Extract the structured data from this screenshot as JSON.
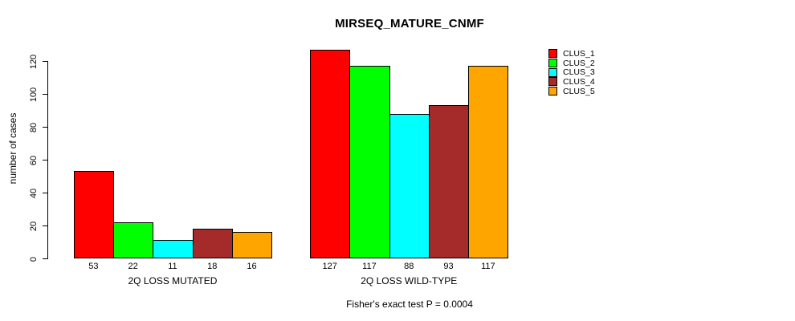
{
  "title": "MIRSEQ_MATURE_CNMF",
  "footer": {
    "text": "Fisher's exact test P = 0.0004"
  },
  "chart_data": {
    "type": "bar",
    "title": "MIRSEQ_MATURE_CNMF",
    "xlabel": "",
    "ylabel": "number of cases",
    "ylim": [
      0,
      120
    ],
    "yticks": [
      0,
      20,
      40,
      60,
      80,
      100,
      120
    ],
    "grid": false,
    "legend_position": "right-outside",
    "bar_value_labels_shown": true,
    "categories": [
      "2Q LOSS MUTATED",
      "2Q LOSS WILD-TYPE"
    ],
    "series": [
      {
        "name": "CLUS_1",
        "color": "#ff0000",
        "values": [
          53,
          127
        ]
      },
      {
        "name": "CLUS_2",
        "color": "#00ff00",
        "values": [
          22,
          117
        ]
      },
      {
        "name": "CLUS_3",
        "color": "#00ffff",
        "values": [
          11,
          88
        ]
      },
      {
        "name": "CLUS_4",
        "color": "#a52a2a",
        "values": [
          18,
          93
        ]
      },
      {
        "name": "CLUS_5",
        "color": "#ffa500",
        "values": [
          16,
          117
        ]
      }
    ],
    "annotation": "Fisher's exact test P = 0.0004"
  }
}
